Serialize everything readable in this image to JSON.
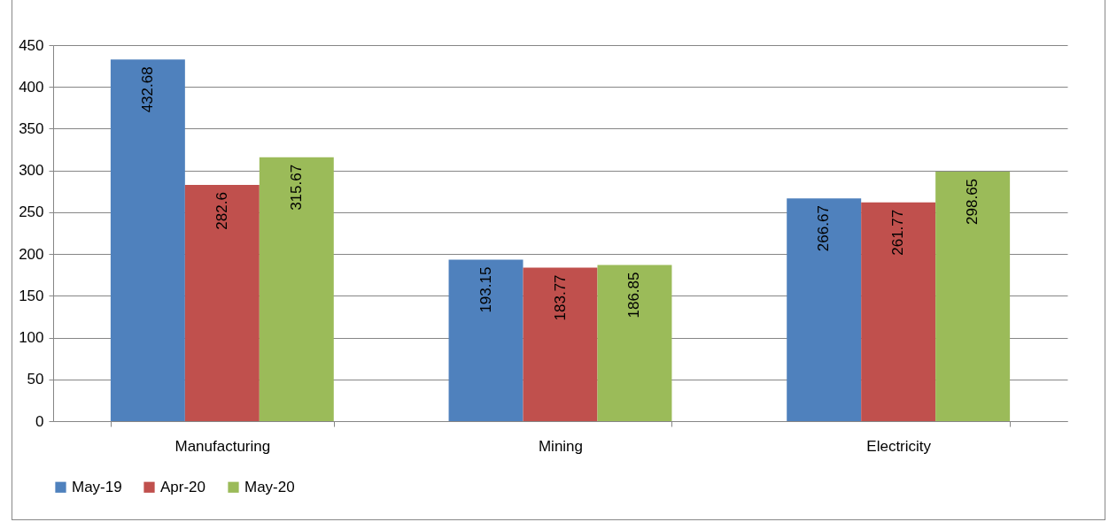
{
  "chart_data": {
    "type": "bar",
    "categories": [
      "Manufacturing",
      "Mining",
      "Electricity"
    ],
    "series": [
      {
        "name": "May-19",
        "color": "#4f81bd",
        "values": [
          432.68,
          193.15,
          266.67
        ]
      },
      {
        "name": "Apr-20",
        "color": "#c0504d",
        "values": [
          282.6,
          183.77,
          261.77
        ]
      },
      {
        "name": "May-20",
        "color": "#9bbb59",
        "values": [
          315.67,
          186.85,
          298.65
        ]
      }
    ],
    "ylim": [
      0,
      450
    ],
    "yticks": [
      0,
      50,
      100,
      150,
      200,
      250,
      300,
      350,
      400,
      450
    ],
    "grid": "y",
    "legend": "bottom",
    "data_labels": true
  }
}
